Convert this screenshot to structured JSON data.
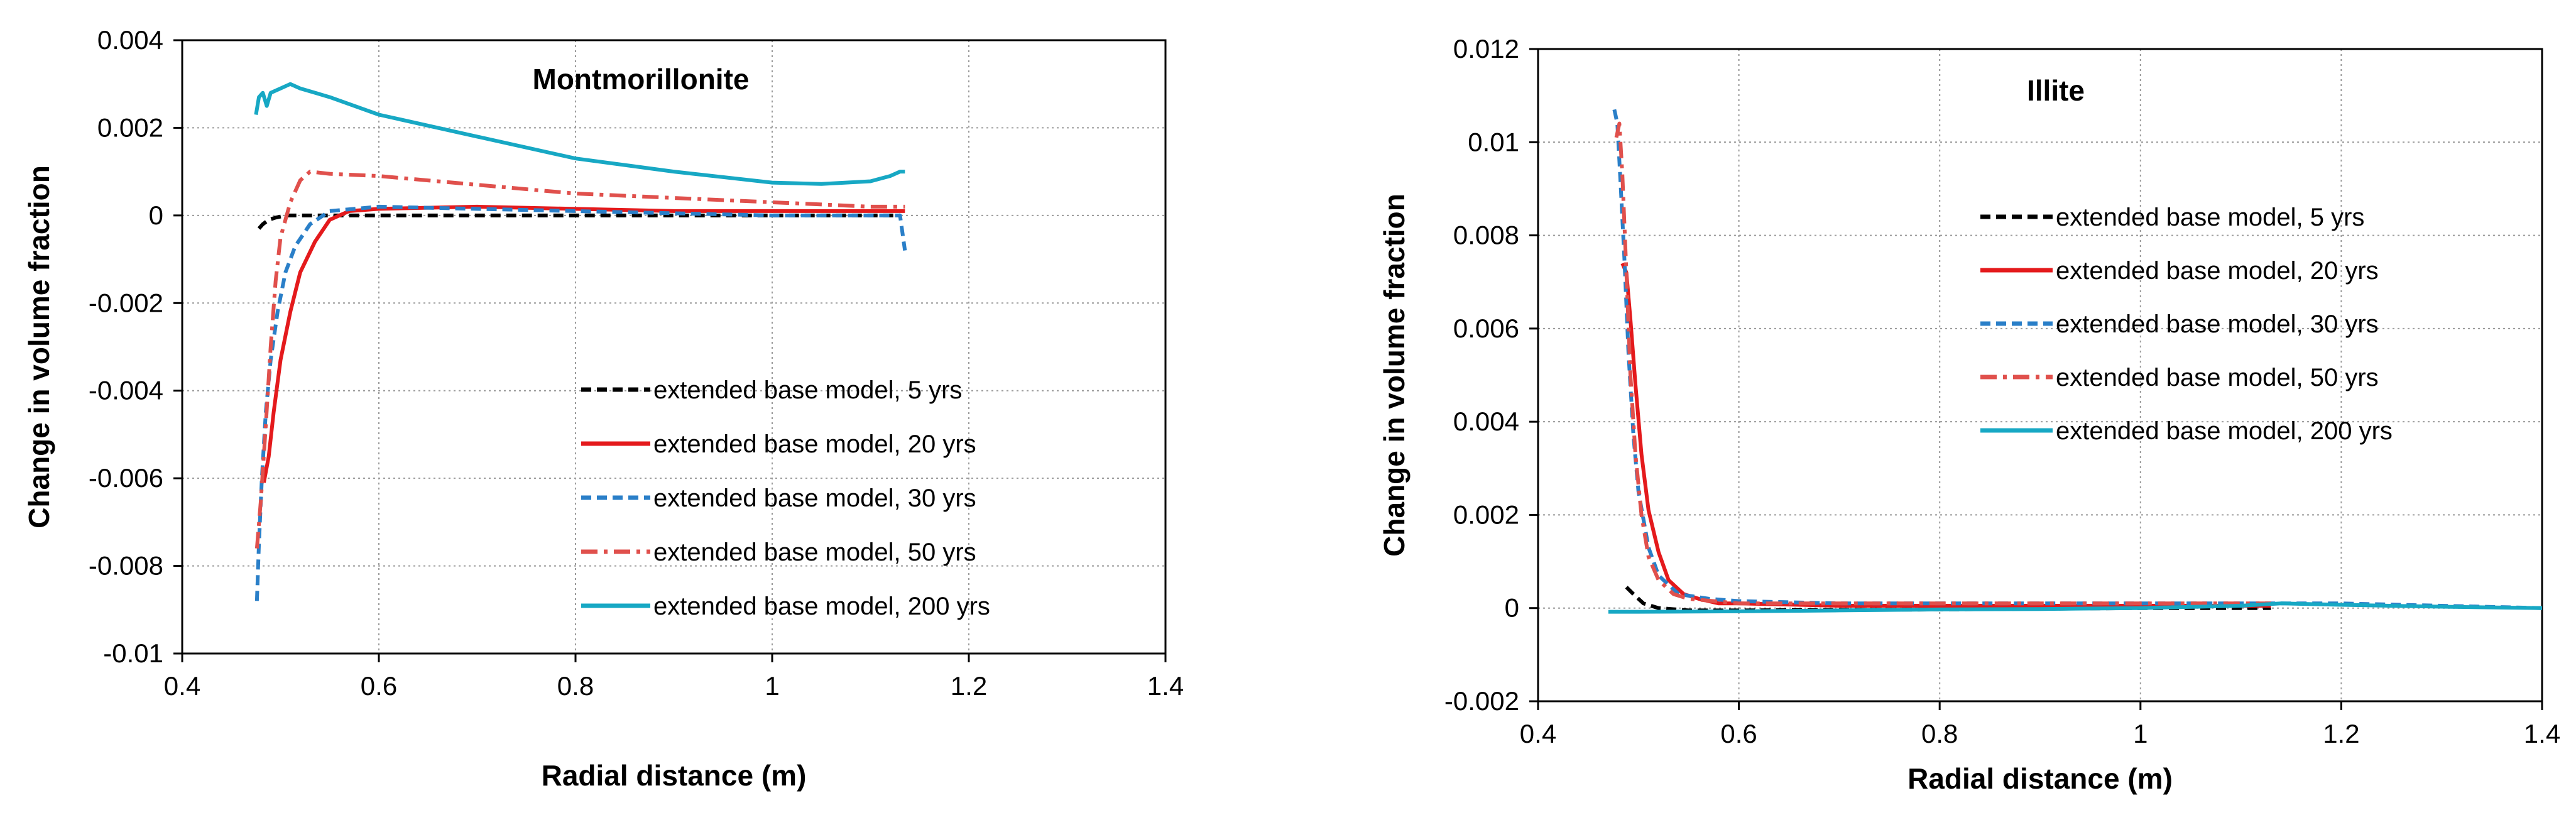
{
  "chart_data": [
    {
      "type": "line",
      "title": "Montmorillonite",
      "xlabel": "Radial distance (m)",
      "ylabel": "Change in volume fraction",
      "xlim": [
        0.4,
        1.4
      ],
      "ylim": [
        -0.01,
        0.004
      ],
      "xticks": [
        0.4,
        0.6,
        0.8,
        1,
        1.2,
        1.4
      ],
      "yticks": [
        -0.01,
        -0.008,
        -0.006,
        -0.004,
        -0.002,
        0,
        0.002,
        0.004
      ],
      "xtick_labels": [
        "0.4",
        "0.6",
        "0.8",
        "1",
        "1.2",
        "1.4"
      ],
      "ytick_labels": [
        "-0.01",
        "-0.008",
        "-0.006",
        "-0.004",
        "-0.002",
        "0",
        "0.002",
        "0.004"
      ],
      "grid": true,
      "legend_position": "lower-right",
      "series": [
        {
          "name": "extended base model, 5 yrs",
          "color": "#000000",
          "dash": "dashed",
          "x": [
            0.478,
            0.482,
            0.488,
            0.495,
            0.505,
            0.52,
            0.55,
            0.6,
            0.8,
            1.0,
            1.13
          ],
          "y": [
            -0.0003,
            -0.0002,
            -0.0001,
            -5e-05,
            0.0,
            0.0,
            0.0,
            0.0,
            0.0,
            0.0,
            0.0
          ]
        },
        {
          "name": "extended base model, 20 yrs",
          "color": "#e41a1c",
          "dash": "solid",
          "x": [
            0.483,
            0.488,
            0.493,
            0.5,
            0.51,
            0.52,
            0.535,
            0.55,
            0.57,
            0.6,
            0.7,
            0.8,
            0.9,
            1.0,
            1.1,
            1.135
          ],
          "y": [
            -0.0061,
            -0.0055,
            -0.0045,
            -0.0033,
            -0.0022,
            -0.0013,
            -0.0006,
            -0.0001,
            0.0001,
            0.00015,
            0.0002,
            0.00015,
            0.0001,
            0.0001,
            0.0001,
            0.0001
          ]
        },
        {
          "name": "extended base model, 30 yrs",
          "color": "#2a7fc8",
          "dash": "dashed",
          "x": [
            0.476,
            0.478,
            0.481,
            0.485,
            0.49,
            0.497,
            0.505,
            0.515,
            0.53,
            0.55,
            0.6,
            0.8,
            1.0,
            1.13,
            1.135
          ],
          "y": [
            -0.0088,
            -0.0075,
            -0.006,
            -0.0045,
            -0.0033,
            -0.0022,
            -0.0013,
            -0.0007,
            -0.0002,
            0.0001,
            0.0002,
            0.0001,
            0.0,
            0.0,
            -0.0008
          ]
        },
        {
          "name": "extended base model, 50 yrs",
          "color": "#e0504c",
          "dash": "dashdot",
          "x": [
            0.476,
            0.48,
            0.485,
            0.49,
            0.495,
            0.5,
            0.51,
            0.52,
            0.53,
            0.55,
            0.6,
            0.7,
            0.8,
            0.9,
            1.0,
            1.1,
            1.135
          ],
          "y": [
            -0.0076,
            -0.0065,
            -0.0048,
            -0.003,
            -0.0015,
            -0.0005,
            0.0003,
            0.0008,
            0.001,
            0.00095,
            0.0009,
            0.0007,
            0.0005,
            0.0004,
            0.0003,
            0.0002,
            0.0002
          ]
        },
        {
          "name": "extended base model, 200 yrs",
          "color": "#17a8c4",
          "dash": "solid",
          "x": [
            0.475,
            0.478,
            0.482,
            0.486,
            0.49,
            0.5,
            0.51,
            0.52,
            0.55,
            0.6,
            0.7,
            0.8,
            0.9,
            1.0,
            1.05,
            1.1,
            1.12,
            1.13,
            1.135
          ],
          "y": [
            0.0023,
            0.0027,
            0.0028,
            0.0025,
            0.0028,
            0.0029,
            0.003,
            0.0029,
            0.0027,
            0.0023,
            0.0018,
            0.0013,
            0.001,
            0.00075,
            0.00072,
            0.00078,
            0.0009,
            0.001,
            0.001
          ]
        }
      ]
    },
    {
      "type": "line",
      "title": "Illite",
      "xlabel": "Radial distance (m)",
      "ylabel": "Change in volume fraction",
      "xlim": [
        0.4,
        1.4
      ],
      "ylim": [
        -0.002,
        0.012
      ],
      "xticks": [
        0.4,
        0.6,
        0.8,
        1,
        1.2,
        1.4
      ],
      "yticks": [
        -0.002,
        0,
        0.002,
        0.004,
        0.006,
        0.008,
        0.01,
        0.012
      ],
      "xtick_labels": [
        "0.4",
        "0.6",
        "0.8",
        "1",
        "1.2",
        "1.4"
      ],
      "ytick_labels": [
        "-0.002",
        "0",
        "0.002",
        "0.004",
        "0.006",
        "0.008",
        "0.01",
        "0.012"
      ],
      "grid": true,
      "legend_position": "upper-right",
      "series": [
        {
          "name": "extended base model, 5 yrs",
          "color": "#000000",
          "dash": "dashed",
          "x": [
            0.488,
            0.495,
            0.505,
            0.52,
            0.55,
            0.6,
            0.8,
            1.0,
            1.13
          ],
          "y": [
            0.00045,
            0.0003,
            0.0001,
            0.0,
            -5e-05,
            -5e-05,
            -3e-05,
            0.0,
            0.0
          ]
        },
        {
          "name": "extended base model, 20 yrs",
          "color": "#e41a1c",
          "dash": "solid",
          "x": [
            0.484,
            0.488,
            0.492,
            0.497,
            0.503,
            0.51,
            0.52,
            0.53,
            0.545,
            0.56,
            0.58,
            0.6,
            0.7,
            0.8,
            1.0,
            1.13
          ],
          "y": [
            0.0074,
            0.0072,
            0.0062,
            0.0048,
            0.0033,
            0.0021,
            0.0012,
            0.0006,
            0.0003,
            0.0002,
            0.0001,
            0.0001,
            5e-05,
            5e-05,
            5e-05,
            5e-05
          ]
        },
        {
          "name": "extended base model, 30 yrs",
          "color": "#2a7fc8",
          "dash": "dashed",
          "x": [
            0.476,
            0.479,
            0.482,
            0.486,
            0.49,
            0.495,
            0.5,
            0.51,
            0.52,
            0.54,
            0.57,
            0.6,
            0.7,
            0.8,
            1.0,
            1.2,
            1.4
          ],
          "y": [
            0.0107,
            0.0104,
            0.0092,
            0.0075,
            0.0055,
            0.0037,
            0.0025,
            0.0013,
            0.0007,
            0.0003,
            0.0002,
            0.00015,
            0.0001,
            0.0001,
            0.0001,
            0.0001,
            0.0
          ]
        },
        {
          "name": "extended base model, 50 yrs",
          "color": "#e0504c",
          "dash": "dashdot",
          "x": [
            0.478,
            0.481,
            0.484,
            0.488,
            0.492,
            0.497,
            0.503,
            0.51,
            0.52,
            0.535,
            0.55,
            0.6,
            0.7,
            0.8,
            1.0,
            1.1,
            1.13
          ],
          "y": [
            0.0101,
            0.0104,
            0.0093,
            0.0072,
            0.005,
            0.0033,
            0.002,
            0.0011,
            0.0006,
            0.0003,
            0.0002,
            0.0001,
            0.0001,
            0.0001,
            0.0001,
            0.0001,
            0.0001
          ]
        },
        {
          "name": "extended base model, 200 yrs",
          "color": "#17a8c4",
          "dash": "solid",
          "x": [
            0.47,
            0.5,
            0.6,
            0.7,
            0.8,
            0.9,
            1.0,
            1.1,
            1.14,
            1.2,
            1.3,
            1.4
          ],
          "y": [
            -8e-05,
            -8e-05,
            -7e-05,
            -5e-05,
            -3e-05,
            -2e-05,
            0.0,
            5e-05,
            0.0001,
            7e-05,
            3e-05,
            0.0
          ]
        }
      ]
    }
  ]
}
